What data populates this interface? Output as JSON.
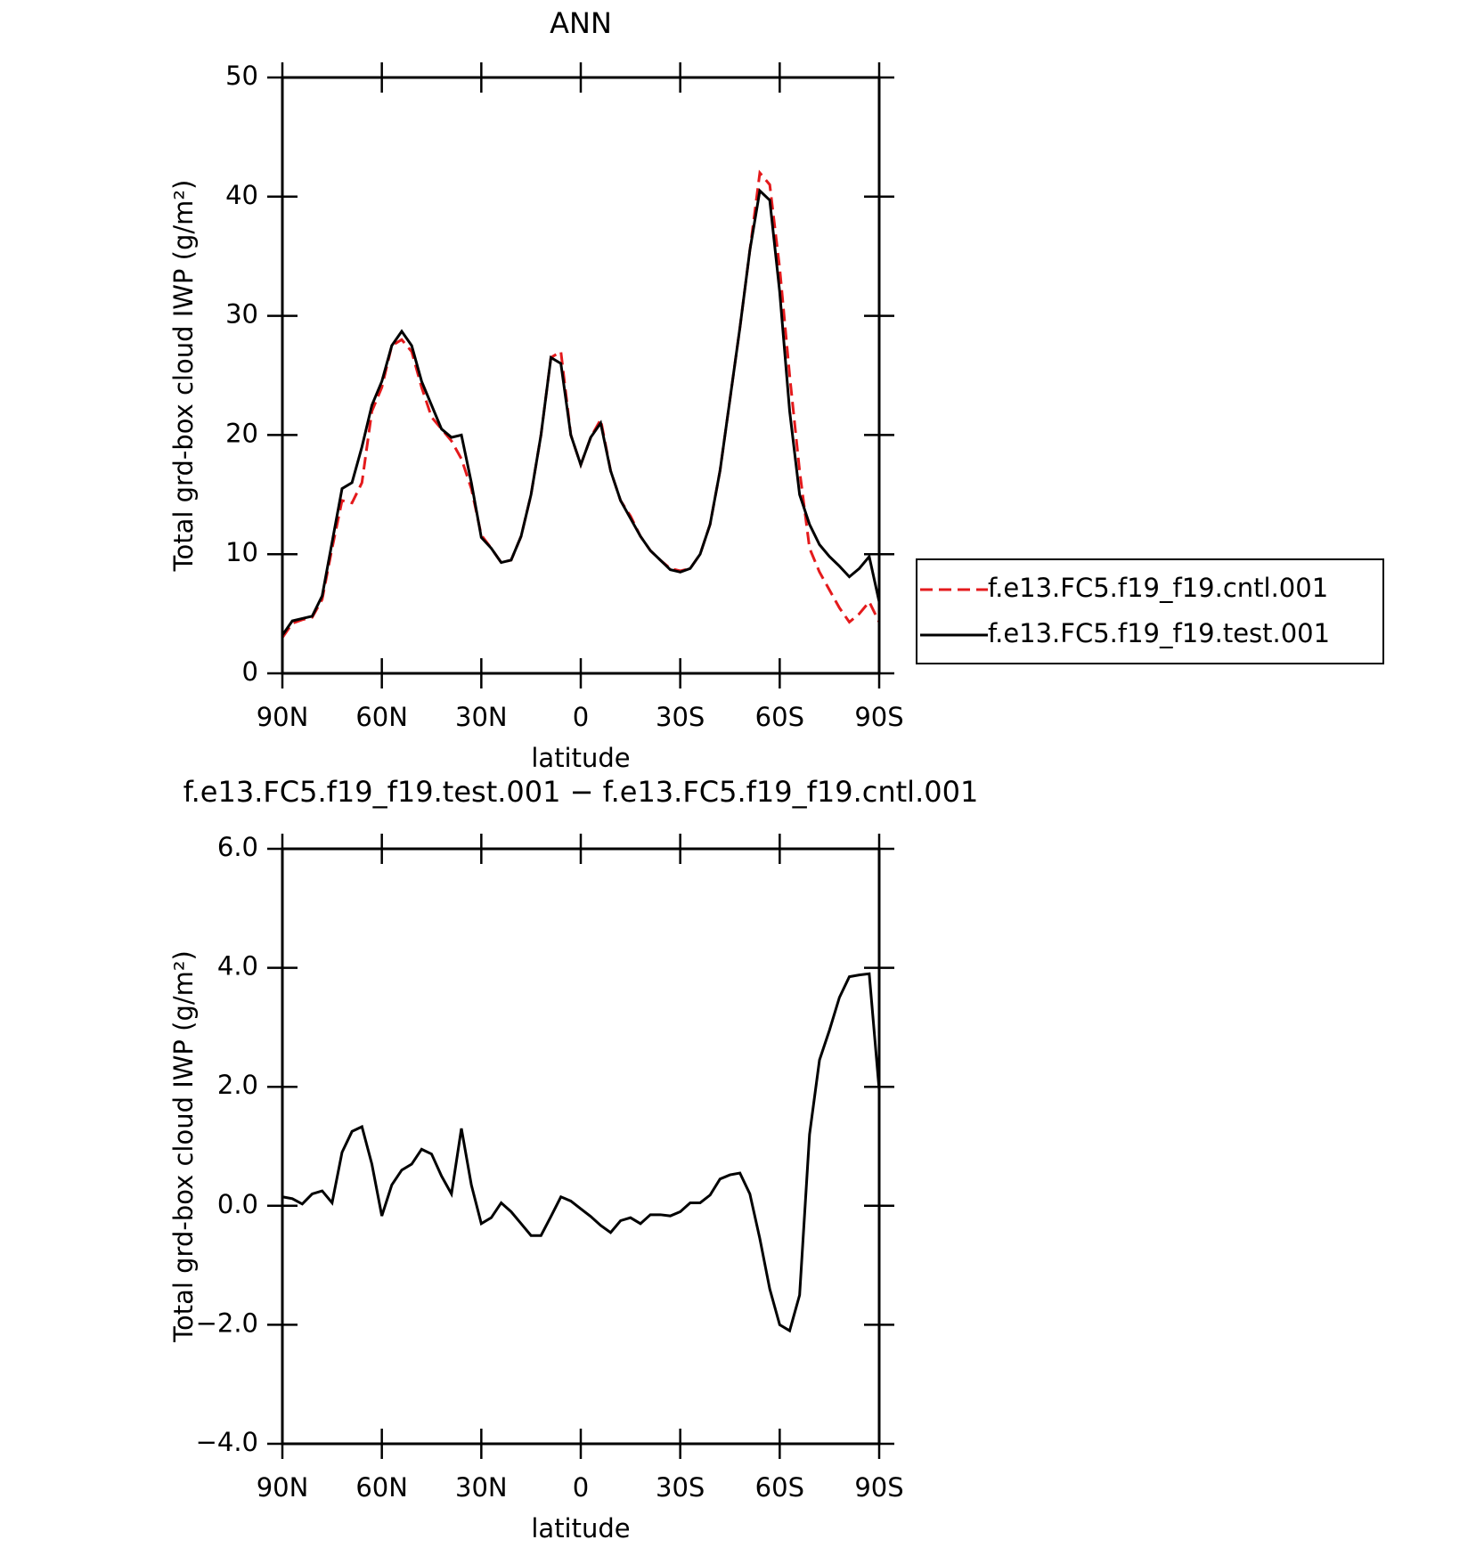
{
  "chart_data": [
    {
      "type": "line",
      "title": "ANN",
      "xlabel": "latitude",
      "ylabel": "Total grd-box cloud IWP (g/m²)",
      "x": [
        90,
        87,
        84,
        81,
        78,
        75,
        72,
        69,
        66,
        63,
        60,
        57,
        54,
        51,
        48,
        45,
        42,
        39,
        36,
        33,
        30,
        27,
        24,
        21,
        18,
        15,
        12,
        9,
        6,
        3,
        0,
        -3,
        -6,
        -9,
        -12,
        -15,
        -18,
        -21,
        -24,
        -27,
        -30,
        -33,
        -36,
        -39,
        -42,
        -45,
        -48,
        -51,
        -54,
        -57,
        -60,
        -63,
        -66,
        -69,
        -72,
        -75,
        -78,
        -81,
        -84,
        -87,
        -90
      ],
      "series": [
        {
          "name": "f.e13.FC5.f19_f19.cntl.001",
          "color": "#e41a1c",
          "style": "dashed",
          "values": [
            3.0,
            4.2,
            4.5,
            4.7,
            6.2,
            10.5,
            14.5,
            14.3,
            16,
            22,
            24,
            27.5,
            28,
            27,
            24,
            21.5,
            20.5,
            19.5,
            18,
            15.5,
            11.6,
            10.5,
            9.3,
            9.5,
            11.5,
            15,
            20,
            26.5,
            27,
            20,
            17.5,
            19.8,
            21.3,
            17,
            14.5,
            13.2,
            11.5,
            10.3,
            9.5,
            8.8,
            8.6,
            8.8,
            10,
            12.5,
            17,
            23,
            29,
            35.5,
            42,
            41,
            34,
            25,
            17,
            10.5,
            8.5,
            7,
            5.5,
            4.3,
            5,
            6,
            4.3
          ]
        },
        {
          "name": "f.e13.FC5.f19_f19.test.001",
          "color": "#000000",
          "style": "solid",
          "values": [
            3.2,
            4.4,
            4.6,
            4.8,
            6.5,
            11,
            15.5,
            16,
            19,
            22.5,
            24.5,
            27.5,
            28.7,
            27.5,
            24.5,
            22.5,
            20.5,
            19.8,
            20,
            16,
            11.4,
            10.5,
            9.3,
            9.5,
            11.5,
            15,
            20,
            26.5,
            26,
            20,
            17.5,
            19.8,
            21,
            17,
            14.5,
            13,
            11.5,
            10.3,
            9.5,
            8.7,
            8.5,
            8.8,
            10,
            12.5,
            17,
            23,
            29,
            35.5,
            40.5,
            39.7,
            32,
            22,
            15,
            12.5,
            10.8,
            9.8,
            9,
            8.1,
            8.8,
            9.8,
            6
          ]
        }
      ],
      "xlim": [
        90,
        -90
      ],
      "xticks": [
        {
          "value": 90,
          "label": "90N"
        },
        {
          "value": 60,
          "label": "60N"
        },
        {
          "value": 30,
          "label": "30N"
        },
        0,
        {
          "value": -30,
          "label": "30S"
        },
        {
          "value": -60,
          "label": "60S"
        },
        {
          "value": -90,
          "label": "90S"
        }
      ],
      "ylim": [
        0,
        50
      ],
      "yticks": [
        0,
        10,
        20,
        30,
        40,
        50
      ],
      "legend": "right"
    },
    {
      "type": "line",
      "title": "f.e13.FC5.f19_f19.test.001 − f.e13.FC5.f19_f19.cntl.001",
      "xlabel": "latitude",
      "ylabel": "Total grd-box cloud IWP (g/m²)",
      "x": [
        90,
        87,
        84,
        81,
        78,
        75,
        72,
        69,
        66,
        63,
        60,
        57,
        54,
        51,
        48,
        45,
        42,
        39,
        36,
        33,
        30,
        27,
        24,
        21,
        18,
        15,
        12,
        9,
        6,
        3,
        0,
        -3,
        -6,
        -9,
        -12,
        -15,
        -18,
        -21,
        -24,
        -27,
        -30,
        -33,
        -36,
        -39,
        -42,
        -45,
        -48,
        -51,
        -54,
        -57,
        -60,
        -63,
        -66,
        -69,
        -72,
        -75,
        -78,
        -81,
        -84,
        -87,
        -90
      ],
      "series": [
        {
          "color": "#000000",
          "style": "solid",
          "values": [
            0.15,
            0.12,
            0.03,
            0.2,
            0.25,
            0.05,
            0.9,
            1.25,
            1.33,
            0.7,
            -0.17,
            0.35,
            0.6,
            0.7,
            0.95,
            0.87,
            0.5,
            0.2,
            1.3,
            0.35,
            -0.3,
            -0.2,
            0.05,
            -0.1,
            -0.3,
            -0.5,
            -0.5,
            -0.18,
            0.15,
            0.08,
            -0.05,
            -0.18,
            -0.33,
            -0.45,
            -0.25,
            -0.2,
            -0.3,
            -0.15,
            -0.15,
            -0.17,
            -0.1,
            0.05,
            0.05,
            0.18,
            0.45,
            0.52,
            0.55,
            0.2,
            -0.55,
            -1.4,
            -2.0,
            -2.1,
            -1.5,
            1.2,
            2.45,
            2.95,
            3.5,
            3.85,
            3.88,
            3.9,
            1.95
          ]
        }
      ],
      "xlim": [
        90,
        -90
      ],
      "xticks": [
        {
          "value": 90,
          "label": "90N"
        },
        {
          "value": 60,
          "label": "60N"
        },
        {
          "value": 30,
          "label": "30N"
        },
        0,
        {
          "value": -30,
          "label": "30S"
        },
        {
          "value": -60,
          "label": "60S"
        },
        {
          "value": -90,
          "label": "90S"
        }
      ],
      "ylim": [
        -4,
        6
      ],
      "yticks": [
        {
          "value": -4,
          "label": "−4.0"
        },
        {
          "value": -2,
          "label": "−2.0"
        },
        {
          "value": 0,
          "label": "0.0"
        },
        {
          "value": 2,
          "label": "2.0"
        },
        {
          "value": 4,
          "label": "4.0"
        },
        {
          "value": 6,
          "label": "6.0"
        }
      ]
    }
  ]
}
